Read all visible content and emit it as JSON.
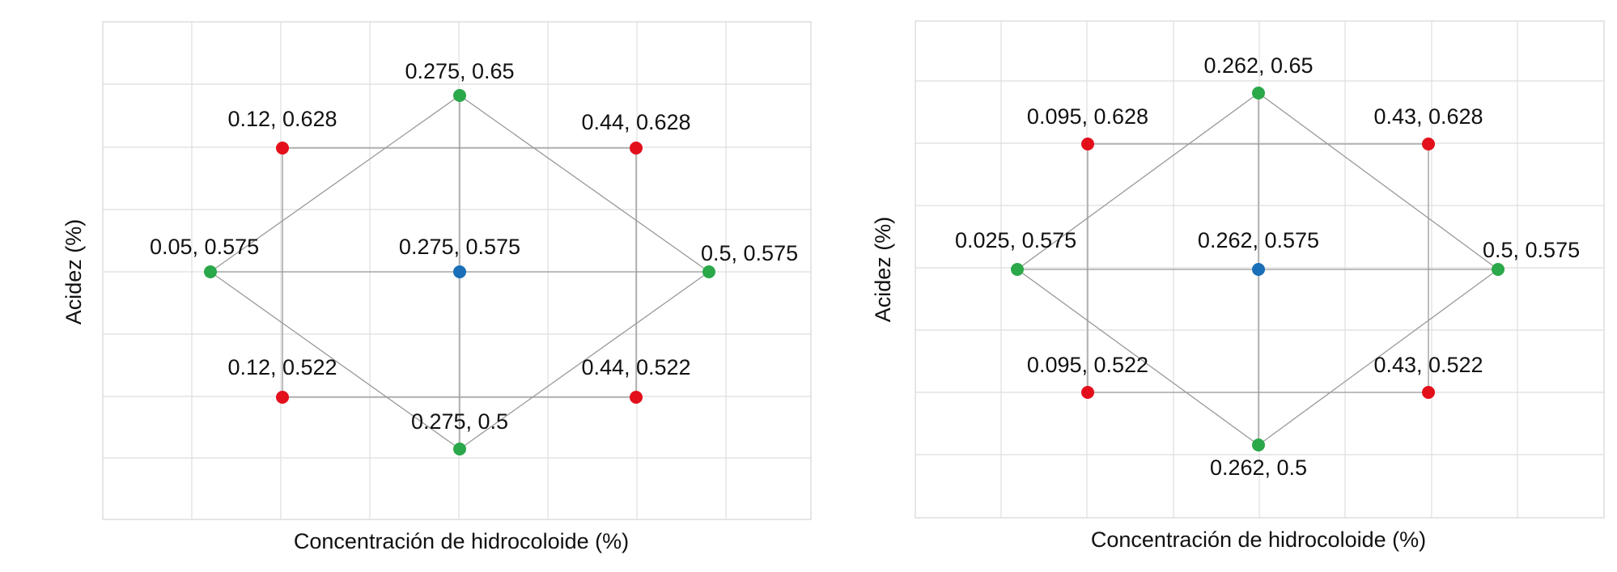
{
  "colors": {
    "axial": "#2aa84a",
    "factorial": "#e3101c",
    "center": "#1a6fb8",
    "grid": "#dedede",
    "edge": "#999999"
  },
  "chart_data": [
    {
      "type": "scatter",
      "title": "",
      "xlabel": "Concentración de hidrocoloide (%)",
      "ylabel": "Acidez (%)",
      "grid": true,
      "points": [
        {
          "id": "top",
          "x": 0.275,
          "y": 0.65,
          "group": "axial",
          "label": "0.275, 0.65"
        },
        {
          "id": "tl",
          "x": 0.12,
          "y": 0.628,
          "group": "factorial",
          "label": "0.12, 0.628"
        },
        {
          "id": "tr",
          "x": 0.44,
          "y": 0.628,
          "group": "factorial",
          "label": "0.44, 0.628"
        },
        {
          "id": "left",
          "x": 0.05,
          "y": 0.575,
          "group": "axial",
          "label": "0.05, 0.575"
        },
        {
          "id": "center",
          "x": 0.275,
          "y": 0.575,
          "group": "center",
          "label": "0.275, 0.575"
        },
        {
          "id": "right",
          "x": 0.5,
          "y": 0.575,
          "group": "axial",
          "label": "0.5, 0.575"
        },
        {
          "id": "bl",
          "x": 0.12,
          "y": 0.522,
          "group": "factorial",
          "label": "0.12, 0.522"
        },
        {
          "id": "br",
          "x": 0.44,
          "y": 0.522,
          "group": "factorial",
          "label": "0.44, 0.522"
        },
        {
          "id": "bottom",
          "x": 0.275,
          "y": 0.5,
          "group": "axial",
          "label": "0.275, 0.5"
        }
      ]
    },
    {
      "type": "scatter",
      "title": "",
      "xlabel": "Concentración de hidrocoloide (%)",
      "ylabel": "Acidez (%)",
      "grid": true,
      "points": [
        {
          "id": "top",
          "x": 0.262,
          "y": 0.65,
          "group": "axial",
          "label": "0.262, 0.65"
        },
        {
          "id": "tl",
          "x": 0.095,
          "y": 0.628,
          "group": "factorial",
          "label": "0.095, 0.628"
        },
        {
          "id": "tr",
          "x": 0.43,
          "y": 0.628,
          "group": "factorial",
          "label": "0.43, 0.628"
        },
        {
          "id": "left",
          "x": 0.025,
          "y": 0.575,
          "group": "axial",
          "label": "0.025, 0.575"
        },
        {
          "id": "center",
          "x": 0.262,
          "y": 0.575,
          "group": "center",
          "label": "0.262, 0.575"
        },
        {
          "id": "right",
          "x": 0.5,
          "y": 0.575,
          "group": "axial",
          "label": "0.5, 0.575"
        },
        {
          "id": "bl",
          "x": 0.095,
          "y": 0.522,
          "group": "factorial",
          "label": "0.095, 0.522"
        },
        {
          "id": "br",
          "x": 0.43,
          "y": 0.522,
          "group": "factorial",
          "label": "0.43, 0.522"
        },
        {
          "id": "bottom",
          "x": 0.262,
          "y": 0.5,
          "group": "axial",
          "label": "0.262, 0.5"
        }
      ]
    }
  ]
}
